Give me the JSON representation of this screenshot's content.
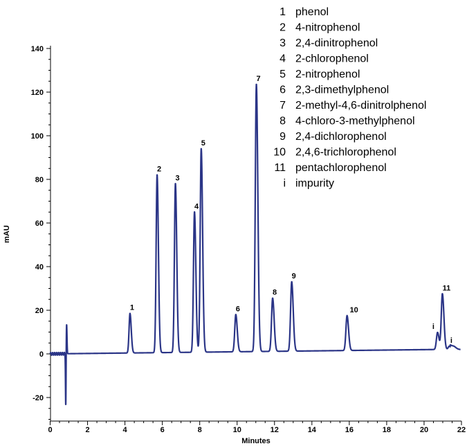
{
  "chart_data": {
    "type": "line",
    "xlabel": "Minutes",
    "ylabel": "mAU",
    "xlim": [
      0,
      22
    ],
    "ylim": [
      -31,
      140
    ],
    "x_ticks": [
      "0",
      "2",
      "4",
      "6",
      "8",
      "10",
      "12",
      "14",
      "16",
      "18",
      "20",
      "22"
    ],
    "y_ticks": [
      "-20",
      "0",
      "20",
      "40",
      "60",
      "80",
      "100",
      "120",
      "140"
    ],
    "line_color": "#2b3587",
    "baseline": {
      "x": [
        0.0,
        20.5
      ],
      "y": [
        0.0,
        2.0
      ]
    },
    "void_disturbance": {
      "x": 0.88,
      "max": 13.5,
      "min": -24.5
    },
    "peaks": [
      {
        "label": "1",
        "x": 4.27,
        "y": 18.5
      },
      {
        "label": "2",
        "x": 5.72,
        "y": 82
      },
      {
        "label": "3",
        "x": 6.7,
        "y": 78
      },
      {
        "label": "4",
        "x": 7.72,
        "y": 65
      },
      {
        "label": "5",
        "x": 8.08,
        "y": 94
      },
      {
        "label": "6",
        "x": 9.93,
        "y": 18
      },
      {
        "label": "7",
        "x": 11.03,
        "y": 123.5
      },
      {
        "label": "8",
        "x": 11.9,
        "y": 25.5
      },
      {
        "label": "9",
        "x": 12.92,
        "y": 33
      },
      {
        "label": "10",
        "x": 15.88,
        "y": 17.5
      },
      {
        "label": "i",
        "x": 20.72,
        "y": 9.8
      },
      {
        "label": "11",
        "x": 20.98,
        "y": 27.5
      },
      {
        "label": "i",
        "x": 21.35,
        "y": 3.5
      }
    ],
    "legend": [
      {
        "num": "1",
        "name": "phenol"
      },
      {
        "num": "2",
        "name": "4-nitrophenol"
      },
      {
        "num": "3",
        "name": "2,4-dinitrophenol"
      },
      {
        "num": "4",
        "name": "2-chlorophenol"
      },
      {
        "num": "5",
        "name": "2-nitrophenol"
      },
      {
        "num": "6",
        "name": "2,3-dimethylphenol"
      },
      {
        "num": "7",
        "name": "2-methyl-4,6-dinitrolphenol"
      },
      {
        "num": "8",
        "name": "4-chloro-3-methylphenol"
      },
      {
        "num": "9",
        "name": "2,4-dichlorophenol"
      },
      {
        "num": "10",
        "name": "2,4,6-trichlorophenol"
      },
      {
        "num": "11",
        "name": "pentachlorophenol"
      },
      {
        "num": "i",
        "name": "impurity"
      }
    ]
  }
}
